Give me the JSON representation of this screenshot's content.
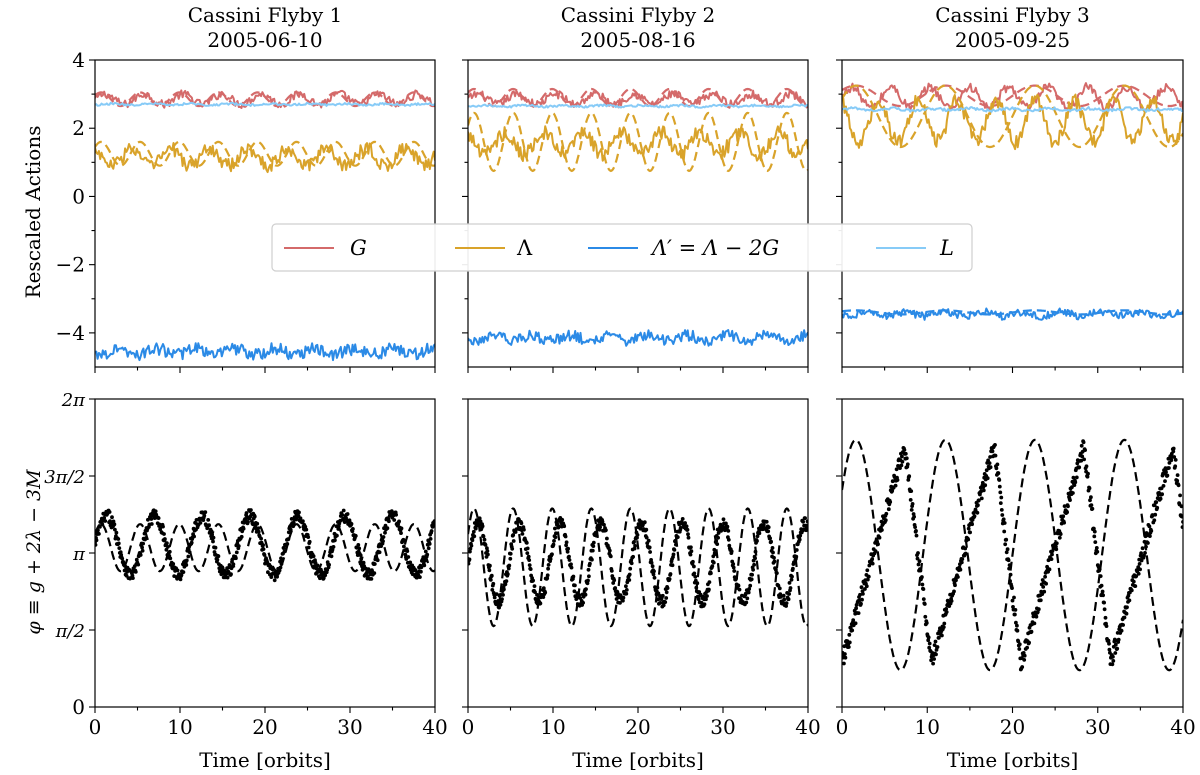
{
  "figure": {
    "legend": {
      "placement": "center, across top row",
      "entries": [
        {
          "label": "G",
          "color": "#d46a6a"
        },
        {
          "label": "Λ",
          "color": "#d9a32a"
        },
        {
          "label": "Λ′ = Λ − 2G",
          "color": "#2b8ae6"
        },
        {
          "label": "L",
          "color": "#87cbf7"
        }
      ]
    },
    "row_ylabels": [
      "Rescaled Actions",
      "φ ≡ g + 2λ − 3M"
    ],
    "xlabel": "Time [orbits]"
  },
  "chart_data": [
    {
      "panel": "actions-flyby-1",
      "type": "line",
      "title": "Cassini Flyby 1\n2005-06-10",
      "xlabel": "",
      "ylabel": "Rescaled Actions",
      "xlim": [
        0,
        40
      ],
      "ylim": [
        -5,
        4
      ],
      "xticks": [
        0,
        10,
        20,
        30,
        40
      ],
      "yticks": [
        -4,
        -2,
        0,
        2,
        4
      ],
      "ytick_labels": [
        "−4",
        "−2",
        "0",
        "2",
        "4"
      ],
      "series": [
        {
          "name": "G",
          "color": "#d46a6a",
          "style": "noisy",
          "mean": 2.85,
          "amp": 0.15,
          "noise": 0.12
        },
        {
          "name": "G",
          "color": "#d46a6a",
          "style": "dashed",
          "mean": 2.85,
          "amp": 0.2,
          "period": 4.6
        },
        {
          "name": "Λ",
          "color": "#d9a32a",
          "style": "noisy",
          "mean": 1.15,
          "amp": 0.25,
          "noise": 0.2
        },
        {
          "name": "Λ",
          "color": "#d9a32a",
          "style": "dashed",
          "mean": 1.25,
          "amp": 0.35,
          "period": 4.6
        },
        {
          "name": "Λ′ = Λ − 2G",
          "color": "#2b8ae6",
          "style": "noisy",
          "mean": -4.55,
          "amp": 0.08,
          "noise": 0.18
        },
        {
          "name": "L",
          "color": "#87cbf7",
          "style": "noisy",
          "mean": 2.7,
          "amp": 0.02,
          "noise": 0.03
        }
      ]
    },
    {
      "panel": "actions-flyby-2",
      "type": "line",
      "title": "Cassini Flyby 2\n2005-08-16",
      "xlabel": "",
      "ylabel": "",
      "xlim": [
        0,
        40
      ],
      "ylim": [
        -5,
        4
      ],
      "xticks": [
        0,
        10,
        20,
        30,
        40
      ],
      "yticks": [
        -4,
        -2,
        0,
        2,
        4
      ],
      "series": [
        {
          "name": "G",
          "color": "#d46a6a",
          "style": "noisy",
          "mean": 2.85,
          "amp": 0.15,
          "noise": 0.12
        },
        {
          "name": "G",
          "color": "#d46a6a",
          "style": "dashed",
          "mean": 2.9,
          "amp": 0.25,
          "period": 4.6
        },
        {
          "name": "Λ",
          "color": "#d9a32a",
          "style": "noisy",
          "mean": 1.55,
          "amp": 0.3,
          "noise": 0.22
        },
        {
          "name": "Λ",
          "color": "#d9a32a",
          "style": "dashed",
          "mean": 1.6,
          "amp": 0.85,
          "period": 4.6
        },
        {
          "name": "Λ′ = Λ − 2G",
          "color": "#2b8ae6",
          "style": "noisy",
          "mean": -4.15,
          "amp": 0.08,
          "noise": 0.16
        },
        {
          "name": "L",
          "color": "#87cbf7",
          "style": "noisy",
          "mean": 2.65,
          "amp": 0.02,
          "noise": 0.03
        }
      ]
    },
    {
      "panel": "actions-flyby-3",
      "type": "line",
      "title": "Cassini Flyby 3\n2005-09-25",
      "xlabel": "",
      "ylabel": "",
      "xlim": [
        0,
        40
      ],
      "ylim": [
        -5,
        4
      ],
      "xticks": [
        0,
        10,
        20,
        30,
        40
      ],
      "yticks": [
        -4,
        -2,
        0,
        2,
        4
      ],
      "series": [
        {
          "name": "G",
          "color": "#d46a6a",
          "style": "noisy",
          "mean": 2.9,
          "amp": 0.3,
          "noise": 0.13
        },
        {
          "name": "G",
          "color": "#d46a6a",
          "style": "dashed",
          "mean": 2.95,
          "amp": 0.3,
          "period": 10.5
        },
        {
          "name": "Λ",
          "color": "#d9a32a",
          "style": "noisy",
          "mean": 2.2,
          "amp": 0.6,
          "noise": 0.22
        },
        {
          "name": "Λ",
          "color": "#d9a32a",
          "style": "dashed",
          "mean": 2.35,
          "amp": 0.9,
          "period": 10.5
        },
        {
          "name": "Λ′ = Λ − 2G",
          "color": "#2b8ae6",
          "style": "noisy",
          "mean": -3.45,
          "amp": 0.06,
          "noise": 0.11
        },
        {
          "name": "Λ′ = Λ − 2G",
          "color": "#2b8ae6",
          "style": "dashed",
          "mean": -3.4,
          "amp": 0.06,
          "period": 10.5
        },
        {
          "name": "L",
          "color": "#87cbf7",
          "style": "noisy",
          "mean": 2.55,
          "amp": 0.03,
          "noise": 0.04
        }
      ]
    },
    {
      "panel": "phi-flyby-1",
      "type": "scatter",
      "title": "",
      "xlabel": "Time [orbits]",
      "ylabel": "φ ≡ g + 2λ − 3M",
      "xlim": [
        0,
        40
      ],
      "ylim": [
        0,
        6.2832
      ],
      "xticks": [
        0,
        10,
        20,
        30,
        40
      ],
      "yticks": [
        0,
        1.5708,
        3.1416,
        4.7124,
        6.2832
      ],
      "ytick_labels": [
        "0",
        "π/2",
        "π",
        "3π/2",
        "2π"
      ],
      "series": [
        {
          "name": "",
          "color": "#000000",
          "style": "dots",
          "mean": 3.3,
          "amp": 0.6,
          "period": 5.6,
          "noise": 0.13
        },
        {
          "name": "",
          "color": "#000000",
          "style": "dashed",
          "mean": 3.25,
          "amp": 0.48,
          "period": 4.6
        }
      ]
    },
    {
      "panel": "phi-flyby-2",
      "type": "scatter",
      "title": "",
      "xlabel": "Time [orbits]",
      "ylabel": "",
      "xlim": [
        0,
        40
      ],
      "ylim": [
        0,
        6.2832
      ],
      "xticks": [
        0,
        10,
        20,
        30,
        40
      ],
      "yticks": [
        0,
        1.5708,
        3.1416,
        4.7124,
        6.2832
      ],
      "series": [
        {
          "name": "",
          "color": "#000000",
          "style": "dots",
          "mean": 2.95,
          "amp": 0.8,
          "period": 4.8,
          "noise": 0.13
        },
        {
          "name": "",
          "color": "#000000",
          "style": "dashed",
          "mean": 2.85,
          "amp": 1.2,
          "period": 4.6
        }
      ]
    },
    {
      "panel": "phi-flyby-3",
      "type": "scatter",
      "title": "",
      "xlabel": "Time [orbits]",
      "ylabel": "",
      "xlim": [
        0,
        40
      ],
      "ylim": [
        0,
        6.2832
      ],
      "xticks": [
        0,
        10,
        20,
        30,
        40
      ],
      "yticks": [
        0,
        1.5708,
        3.1416,
        4.7124,
        6.2832
      ],
      "series": [
        {
          "name": "",
          "color": "#000000",
          "style": "dots",
          "mean": 3.1,
          "amp": 2.2,
          "period": 10.5,
          "noise": 0.18
        },
        {
          "name": "",
          "color": "#000000",
          "style": "dashed",
          "mean": 3.1,
          "amp": 2.35,
          "period": 10.5
        }
      ]
    }
  ]
}
